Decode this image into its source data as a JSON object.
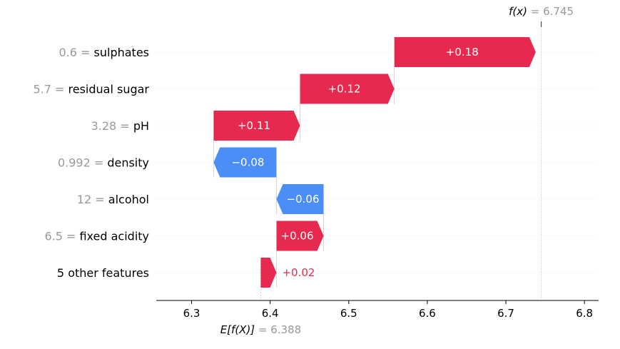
{
  "chart_data": {
    "type": "waterfall",
    "title": "",
    "xlabel": "",
    "ylabel": "",
    "xlim": [
      6.255,
      6.818
    ],
    "x_ticks": [
      "6.3",
      "6.4",
      "6.5",
      "6.6",
      "6.7",
      "6.8"
    ],
    "base_value": 6.388,
    "final_value": 6.745,
    "base_label": {
      "func": "E[f(X)]",
      "eq": " = ",
      "value": "6.388"
    },
    "final_label": {
      "func": "f(x)",
      "eq": " = ",
      "value": "6.745"
    },
    "positive_color": "#ff0051",
    "negative_color": "#008bfb",
    "features": [
      {
        "value_text": "0.6",
        "name": "sulphates",
        "contribution": 0.18,
        "label": "+0.18"
      },
      {
        "value_text": "5.7",
        "name": "residual sugar",
        "contribution": 0.12,
        "label": "+0.12"
      },
      {
        "value_text": "3.28",
        "name": "pH",
        "contribution": 0.11,
        "label": "+0.11"
      },
      {
        "value_text": "0.992",
        "name": "density",
        "contribution": -0.08,
        "label": "−0.08"
      },
      {
        "value_text": "12",
        "name": "alcohol",
        "contribution": -0.06,
        "label": "−0.06"
      },
      {
        "value_text": "6.5",
        "name": "fixed acidity",
        "contribution": 0.06,
        "label": "+0.06"
      },
      {
        "value_text": "",
        "name": "5 other features",
        "contribution": 0.02,
        "label": "+0.02"
      }
    ]
  }
}
